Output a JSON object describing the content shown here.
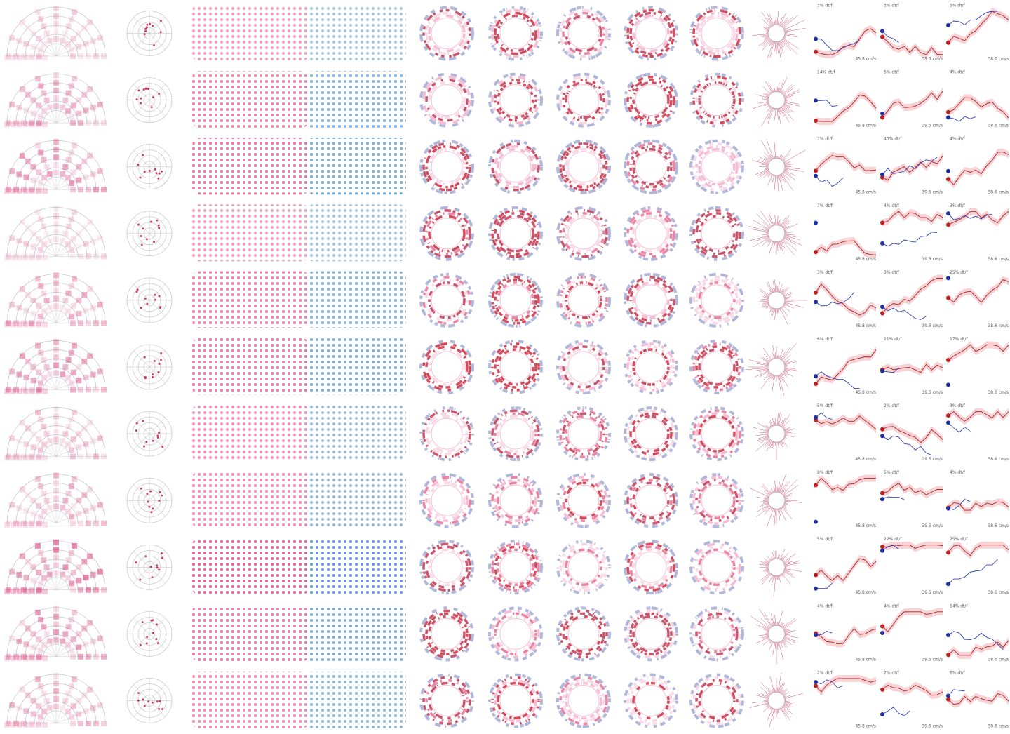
{
  "rows": [
    {
      "panels": [
        {
          "label": "3% dt/f",
          "speed": "45.8 cm/s"
        },
        {
          "label": "3% dt/f",
          "speed": "39.5 cm/s"
        },
        {
          "label": "5% dt/f",
          "speed": "38.6 cm/s"
        }
      ]
    },
    {
      "panels": [
        {
          "label": "14% dt/f",
          "speed": "45.8 cm/s"
        },
        {
          "label": "5% dt/f",
          "speed": "39.5 cm/s"
        },
        {
          "label": "4% dt/f",
          "speed": "38.6 cm/s"
        }
      ]
    },
    {
      "panels": [
        {
          "label": "7% dt/f",
          "speed": "45.8 cm/s"
        },
        {
          "label": "43% dt/f",
          "speed": "39.5 cm/s"
        },
        {
          "label": "4% dt/f",
          "speed": "38.6 cm/s"
        }
      ]
    },
    {
      "panels": [
        {
          "label": "7% dt/f",
          "speed": "45.8 cm/s"
        },
        {
          "label": "4% dt/f",
          "speed": "39.5 cm/s"
        },
        {
          "label": "3% dt/f",
          "speed": "38.6 cm/s"
        }
      ]
    },
    {
      "panels": [
        {
          "label": "3% dt/f",
          "speed": "45.8 cm/s"
        },
        {
          "label": "3% dt/f",
          "speed": "39.5 cm/s"
        },
        {
          "label": "25% dt/f",
          "speed": "38.6 cm/s"
        }
      ]
    },
    {
      "panels": [
        {
          "label": "6% dt/f",
          "speed": "45.8 cm/s"
        },
        {
          "label": "21% dt/f",
          "speed": "39.5 cm/s"
        },
        {
          "label": "17% dt/f",
          "speed": "38.6 cm/s"
        }
      ]
    },
    {
      "panels": [
        {
          "label": "5% dt/f",
          "speed": "45.8 cm/s"
        },
        {
          "label": "2% dt/f",
          "speed": "39.5 cm/s"
        },
        {
          "label": "3% dt/f",
          "speed": "38.6 cm/s"
        }
      ]
    },
    {
      "panels": [
        {
          "label": "8% dt/f",
          "speed": "45.8 cm/s"
        },
        {
          "label": "5% dt/f",
          "speed": "39.5 cm/s"
        },
        {
          "label": "4% dt/f",
          "speed": "38.6 cm/s"
        }
      ]
    },
    {
      "panels": [
        {
          "label": "5% dt/f",
          "speed": "45.8 cm/s"
        },
        {
          "label": "22% dt/f",
          "speed": "39.5 cm/s"
        },
        {
          "label": "25% dt/f",
          "speed": "38.6 cm/s"
        }
      ]
    },
    {
      "panels": [
        {
          "label": "4% dt/f",
          "speed": "45.8 cm/s"
        },
        {
          "label": "4% dt/f",
          "speed": "39.5 cm/s"
        },
        {
          "label": "14% dt/f",
          "speed": "38.6 cm/s"
        }
      ]
    },
    {
      "panels": [
        {
          "label": "2% dt/f",
          "speed": "45.8 cm/s"
        },
        {
          "label": "7% dt/f",
          "speed": "39.5 cm/s"
        },
        {
          "label": "6% dt/f",
          "speed": "38.6 cm/s"
        }
      ]
    }
  ]
}
